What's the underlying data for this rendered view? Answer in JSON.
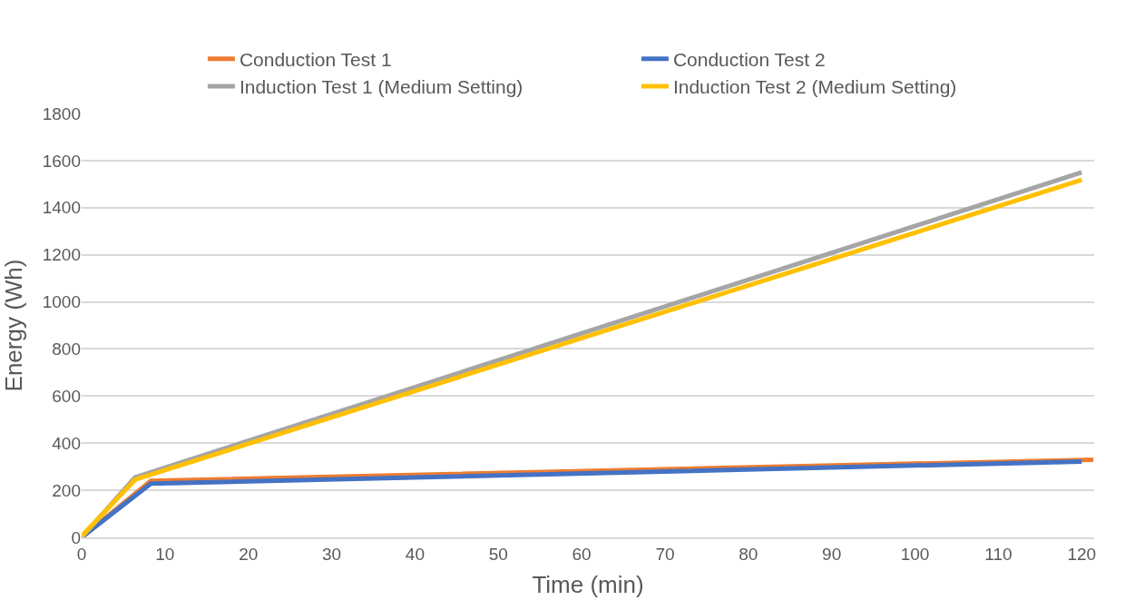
{
  "chart_data": {
    "type": "line",
    "xlabel": "Time (min)",
    "ylabel": "Energy (Wh)",
    "xlim": [
      0,
      121.5
    ],
    "xticks": [
      0,
      10,
      20,
      30,
      40,
      50,
      60,
      70,
      80,
      90,
      100,
      110,
      120
    ],
    "ylim": [
      0,
      1800
    ],
    "yticks": [
      0,
      200,
      400,
      600,
      800,
      1000,
      1200,
      1400,
      1600,
      1800
    ],
    "grid": "y",
    "legend": "top",
    "marker": "none",
    "line_style": "solid",
    "series": [
      {
        "name": "Conduction Test 1",
        "color": "#ed7d31",
        "x": [
          0,
          8.3,
          121.4
        ],
        "values": [
          0,
          240,
          330
        ]
      },
      {
        "name": "Conduction Test 2",
        "color": "#4472c4",
        "x": [
          0,
          8.3,
          120
        ],
        "values": [
          0,
          228,
          322
        ]
      },
      {
        "name": "Induction Test 1 (Medium Setting)",
        "color": "#a5a5a5",
        "x": [
          0,
          6.4,
          120
        ],
        "values": [
          0,
          255,
          1550
        ]
      },
      {
        "name": "Induction Test 2 (Medium Setting)",
        "color": "#ffc000",
        "x": [
          0,
          6.4,
          120
        ],
        "values": [
          5,
          245,
          1518
        ]
      }
    ]
  }
}
